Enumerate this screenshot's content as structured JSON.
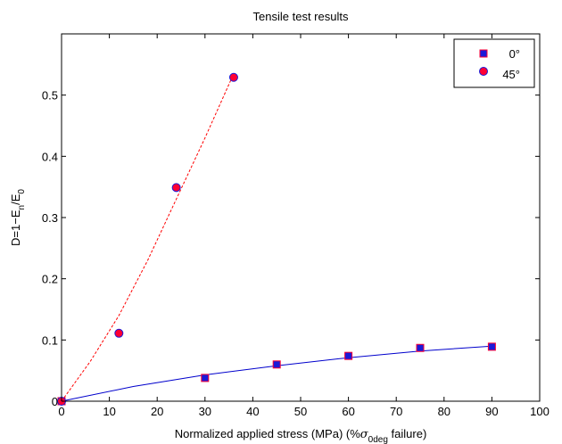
{
  "chart_data": {
    "type": "scatter",
    "title": "Tensile test results",
    "xlabel": {
      "main": "Normalized applied stress (MPa) (%",
      "sigma": "σ",
      "sub": "0deg",
      "tail": " failure)"
    },
    "ylabel": {
      "main": "D=1−E",
      "sub1": "n",
      "mid": "/E",
      "sub2": "0"
    },
    "xlim": [
      0,
      100
    ],
    "ylim": [
      0,
      0.6
    ],
    "xticks": [
      0,
      10,
      20,
      30,
      40,
      50,
      60,
      70,
      80,
      90,
      100
    ],
    "yticks": [
      0,
      0.1,
      0.2,
      0.3,
      0.4,
      0.5
    ],
    "ytick_labels": [
      "0",
      "0.1",
      "0.2",
      "0.3",
      "0.4",
      "0.5"
    ],
    "grid": false,
    "legend_position": "top-right",
    "series": [
      {
        "name": "0°",
        "marker": "square",
        "marker_fill": "#1a1ad8",
        "marker_edge": "#ff0033",
        "line_color": "#0000cc",
        "line_style": "solid",
        "points": [
          [
            0,
            0
          ],
          [
            30,
            0.038
          ],
          [
            45,
            0.06
          ],
          [
            60,
            0.074
          ],
          [
            75,
            0.087
          ],
          [
            90,
            0.089
          ]
        ],
        "fit": [
          [
            0,
            0
          ],
          [
            15,
            0.024
          ],
          [
            30,
            0.043
          ],
          [
            45,
            0.058
          ],
          [
            60,
            0.071
          ],
          [
            75,
            0.082
          ],
          [
            90,
            0.09
          ]
        ]
      },
      {
        "name": "45°",
        "marker": "circle",
        "marker_fill": "#ff0033",
        "marker_edge": "#1a1ad8",
        "line_color": "#ff0000",
        "line_style": "dashed",
        "points": [
          [
            0,
            0
          ],
          [
            12,
            0.111
          ],
          [
            24,
            0.349
          ],
          [
            36,
            0.529
          ]
        ],
        "fit": [
          [
            0,
            0
          ],
          [
            6,
            0.065
          ],
          [
            12,
            0.14
          ],
          [
            18,
            0.23
          ],
          [
            24,
            0.33
          ],
          [
            30,
            0.43
          ],
          [
            36,
            0.535
          ]
        ]
      }
    ]
  }
}
